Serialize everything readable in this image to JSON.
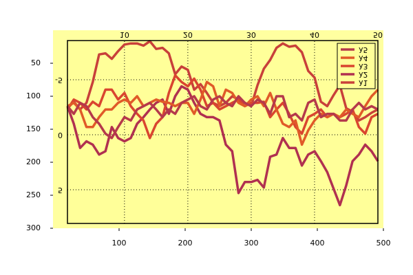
{
  "chart_data": [
    {
      "type": "image",
      "xlim": [
        0,
        500
      ],
      "xticks": [
        100,
        200,
        300,
        400,
        500
      ],
      "ylim": [
        300,
        0
      ],
      "yticks": [
        50,
        100,
        150,
        200,
        250,
        300
      ],
      "color": "#ffffa0"
    },
    {
      "type": "line",
      "flipped": true,
      "color": "#ffff99",
      "grid": true,
      "legend": "lower right",
      "x": [
        1,
        2,
        3,
        4,
        5,
        6,
        7,
        8,
        9,
        10,
        11,
        12,
        13,
        14,
        15,
        16,
        17,
        18,
        19,
        20,
        21,
        22,
        23,
        24,
        25,
        26,
        27,
        28,
        29,
        30,
        31,
        32,
        33,
        34,
        35,
        36,
        37,
        38,
        39,
        40,
        41,
        42,
        43,
        44,
        45,
        46,
        47,
        48,
        49,
        50
      ],
      "xlim": [
        1,
        50
      ],
      "xticks": [
        10,
        20,
        30,
        40,
        50
      ],
      "ylim": [
        -8.56,
        8.06
      ],
      "yticks": [
        -5,
        0,
        5
      ],
      "series": [
        {
          "name": "λ1",
          "color": "#c8403a",
          "values": [
            -2.4,
            -3.0,
            -2.3,
            -2.9,
            -4.8,
            -7.3,
            -7.4,
            -6.9,
            -7.6,
            -8.2,
            -8.3,
            -8.3,
            -8.1,
            -8.5,
            -7.8,
            -7.9,
            -7.4,
            -5.5,
            -6.2,
            -5.9,
            -4.1,
            -4.6,
            -3.8,
            -2.9,
            -2.6,
            -2.9,
            -3.5,
            -3.2,
            -2.9,
            -2.6,
            -4.5,
            -6.0,
            -6.8,
            -7.9,
            -8.3,
            -8.0,
            -8.1,
            -7.5,
            -5.8,
            -5.2,
            -3.0,
            -2.6,
            -3.6,
            -4.5,
            -2.4,
            -2.1,
            -1.3,
            -1.6,
            -2.0,
            -2.3
          ]
        },
        {
          "name": "λ2",
          "color": "#b03050",
          "values": [
            -2.6,
            -1.0,
            1.2,
            0.6,
            0.9,
            1.8,
            1.5,
            -0.7,
            0.3,
            0.6,
            0.3,
            -1.0,
            -1.6,
            -2.3,
            -2.9,
            -3.2,
            -1.9,
            -3.5,
            -4.4,
            -4.1,
            -2.9,
            -1.9,
            -1.6,
            -1.6,
            -1.3,
            0.9,
            1.5,
            5.3,
            4.3,
            4.3,
            4.1,
            4.8,
            2.0,
            1.8,
            0.3,
            1.2,
            1.2,
            2.8,
            1.8,
            1.5,
            2.4,
            3.4,
            4.9,
            6.4,
            4.6,
            2.4,
            1.8,
            0.9,
            1.5,
            2.4
          ]
        },
        {
          "name": "λ3",
          "color": "#d9452f",
          "values": [
            -2.3,
            -3.2,
            -2.9,
            -2.3,
            -3.0,
            -2.6,
            -4.1,
            -4.1,
            -3.2,
            -3.8,
            -2.6,
            -1.9,
            -1.3,
            0.3,
            -1.0,
            -1.6,
            -3.8,
            -5.4,
            -4.8,
            -4.4,
            -5.1,
            -4.1,
            -2.6,
            -2.9,
            -2.3,
            -2.6,
            -2.9,
            -3.2,
            -2.6,
            -2.9,
            -2.9,
            -3.0,
            -1.6,
            -2.3,
            -2.9,
            -1.9,
            -0.7,
            -0.1,
            -1.6,
            -1.9,
            -2.3,
            -1.6,
            -1.9,
            -1.6,
            -1.9,
            -2.3,
            -0.7,
            -0.1,
            -1.6,
            -1.9
          ]
        },
        {
          "name": "λ4",
          "color": "#e05a28",
          "values": [
            -2.6,
            -2.9,
            -2.3,
            -0.7,
            -0.7,
            -1.6,
            -2.3,
            -2.3,
            -2.9,
            -3.2,
            -2.9,
            -3.5,
            -2.6,
            -2.9,
            -3.2,
            -3.0,
            -2.9,
            -2.6,
            -2.9,
            -2.9,
            -1.9,
            -3.2,
            -4.8,
            -4.4,
            -2.6,
            -4.1,
            -3.8,
            -2.9,
            -2.6,
            -3.2,
            -3.5,
            -2.6,
            -3.8,
            -2.3,
            -1.0,
            -0.7,
            -1.3,
            0.9,
            -0.4,
            -1.3,
            -1.9,
            -1.6,
            -1.9,
            -1.6,
            -2.3,
            -1.9,
            -1.6,
            -2.6,
            -3.5,
            -4.1
          ]
        },
        {
          "name": "λ5",
          "color": "#b5394b",
          "values": [
            -2.6,
            -1.9,
            -2.9,
            -2.6,
            -1.6,
            -1.0,
            -0.1,
            0.3,
            -0.7,
            -1.6,
            -1.3,
            -2.3,
            -2.6,
            -2.9,
            -2.3,
            -1.6,
            -2.3,
            -1.9,
            -2.9,
            -3.2,
            -3.5,
            -2.6,
            -2.3,
            -3.2,
            -3.5,
            -2.9,
            -2.6,
            -3.5,
            -2.9,
            -2.6,
            -3.2,
            -2.9,
            -1.9,
            -3.5,
            -3.5,
            -1.6,
            -1.9,
            -1.3,
            -2.9,
            -3.2,
            -1.6,
            -1.9,
            -1.9,
            -1.3,
            -1.3,
            -2.3,
            -2.9,
            -2.3,
            -2.6,
            -2.3
          ]
        }
      ]
    }
  ]
}
